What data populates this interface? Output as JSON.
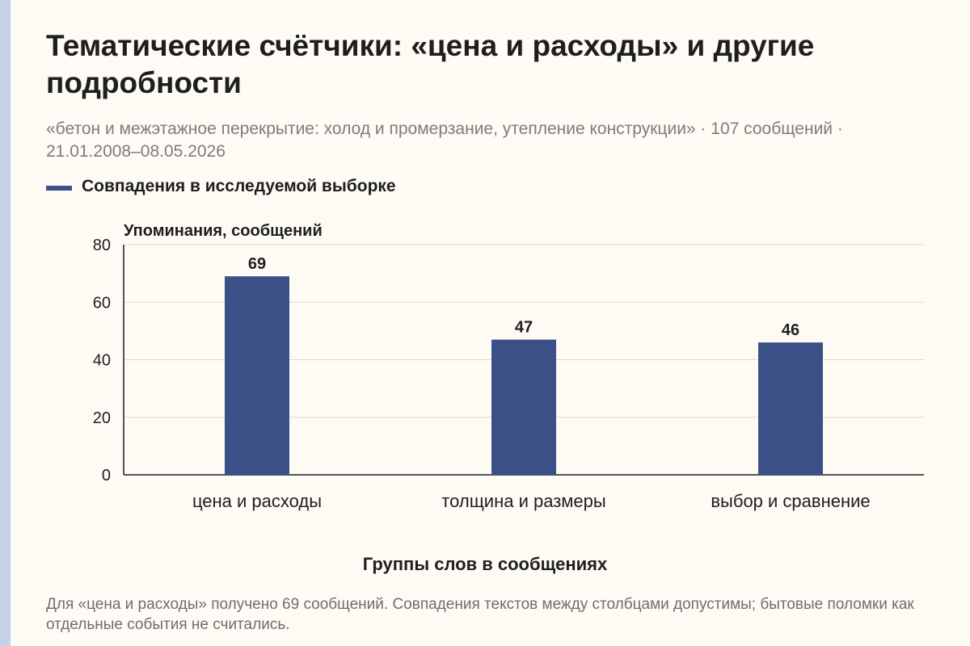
{
  "title": "Тематические счётчики: «цена и расходы» и другие подробности",
  "subtitle": "«бетон и межэтажное перекрытие: холод и промерзание, утепление конструкции» · 107 сообщений · 21.01.2008–08.05.2026",
  "footnote": "Для «цена и расходы» получено 69 сообщений. Совпадения текстов между столбцами допустимы; бытовые поломки как отдельные события не считались.",
  "colors": {
    "bar": "#3c5088",
    "grid": "#d9d9d9",
    "axis": "#1e1e1e",
    "left_strip": "#c8d2e6",
    "background": "#fdfbf4"
  },
  "chart_data": {
    "type": "bar",
    "categories": [
      "цена и расходы",
      "толщина и размеры",
      "выбор и сравнение"
    ],
    "series": [
      {
        "name": "Совпадения в исследуемой выборке",
        "values": [
          69,
          47,
          46
        ]
      }
    ],
    "data_labels": [
      "69",
      "47",
      "46"
    ],
    "xlabel": "Группы слов в сообщениях",
    "ylabel": "Упоминания, сообщений",
    "ylim": [
      0,
      80
    ],
    "yticks": [
      0,
      20,
      40,
      60,
      80
    ],
    "grid": true,
    "legend_position": "top-left"
  }
}
